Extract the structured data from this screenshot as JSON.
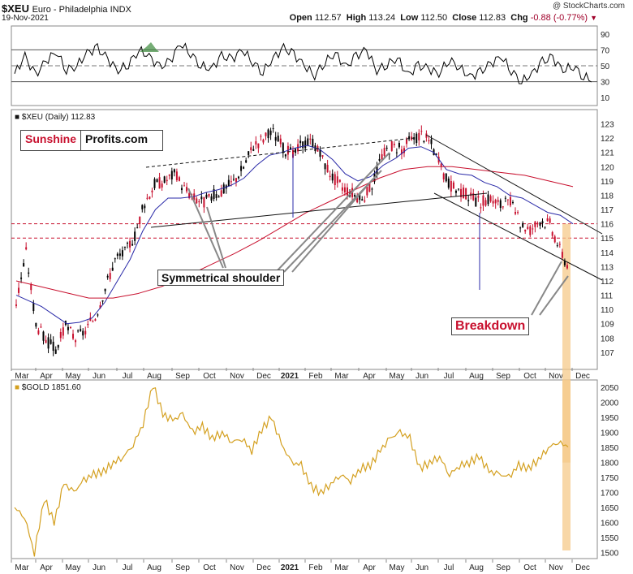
{
  "header": {
    "symbol": "$XEU",
    "description": "Euro - Philadelphia INDX",
    "date": "19-Nov-2021",
    "copyright": "@ StockCharts.com",
    "ohlc": {
      "open_label": "Open",
      "open": "112.57",
      "high_label": "High",
      "high": "113.24",
      "low_label": "Low",
      "low": "112.50",
      "close_label": "Close",
      "close": "112.83",
      "chg_label": "Chg",
      "chg": "-0.88 (-0.77%)",
      "chg_arrow": "▼"
    }
  },
  "logo": {
    "part1": "Sunshine",
    "part2": "Profits.com"
  },
  "annotations": {
    "shoulder": "Symmetrical shoulder",
    "breakdown": "Breakdown"
  },
  "colors": {
    "price_up": "#000000",
    "price_down": "#c8102e",
    "ma_short": "#2a2aa8",
    "ma_long": "#c8102e",
    "gold": "#d4a020",
    "highlight": "#f6c98a",
    "rsi": "#000000"
  },
  "chart_data": [
    {
      "type": "line",
      "name": "RSI panel",
      "yticks": [
        10,
        30,
        50,
        70,
        90
      ],
      "ylim": [
        0,
        100
      ],
      "reference_lines": [
        30,
        50,
        70
      ],
      "series": [
        {
          "values": [
            40,
            62,
            38,
            55,
            68,
            45,
            50,
            66,
            72,
            58,
            44,
            52,
            70,
            62,
            48,
            55,
            78,
            66,
            50,
            46,
            62,
            58,
            70,
            55,
            42,
            60,
            72,
            64,
            50,
            38,
            55,
            66,
            48,
            62,
            70,
            44,
            52,
            60,
            38,
            50,
            46,
            40,
            58,
            48,
            36,
            42,
            52,
            62,
            44,
            30,
            40,
            55,
            60,
            44,
            50,
            36,
            32
          ]
        }
      ]
    },
    {
      "type": "line",
      "name": "$XEU (Daily) 112.83",
      "y_axis_ticks": [
        107,
        108,
        109,
        110,
        111,
        112,
        113,
        114,
        115,
        116,
        117,
        118,
        119,
        120,
        121,
        122,
        123
      ],
      "ylim": [
        105.8,
        124.0
      ],
      "x_axis_labels": [
        "Mar",
        "Apr",
        "May",
        "Jun",
        "Jul",
        "Aug",
        "Sep",
        "Oct",
        "Nov",
        "Dec",
        "2021",
        "Feb",
        "Mar",
        "Apr",
        "May",
        "Jun",
        "Jul",
        "Aug",
        "Sep",
        "Oct",
        "Nov",
        "Dec"
      ],
      "reference_lines": [
        115.0,
        116.0
      ],
      "series": [
        {
          "values": [
            110.5,
            114.0,
            109.0,
            107.8,
            107.2,
            108.8,
            108.0,
            108.5,
            109.5,
            111.5,
            113.5,
            114.0,
            115.2,
            117.5,
            118.8,
            119.0,
            119.5,
            118.5,
            117.8,
            117.5,
            118.0,
            118.4,
            119.0,
            120.0,
            121.5,
            122.0,
            122.4,
            121.3,
            120.8,
            121.6,
            121.8,
            120.5,
            119.3,
            118.6,
            118.2,
            117.6,
            118.8,
            120.8,
            121.5,
            121.2,
            121.9,
            122.3,
            121.6,
            119.8,
            118.6,
            118.3,
            117.8,
            117.5,
            117.8,
            117.3,
            117.5,
            116.0,
            115.6,
            116.3,
            116.0,
            114.2,
            112.8
          ]
        },
        {
          "values": [
            111.0,
            110.6,
            110.2,
            109.6,
            109.0,
            109.1,
            109.4,
            110.5,
            112.0,
            113.5,
            115.5,
            117.0,
            117.8,
            117.8,
            117.9,
            118.2,
            118.4,
            118.7,
            119.2,
            120.1,
            120.8,
            121.0,
            121.3,
            121.5,
            121.2,
            120.5,
            119.5,
            119.0,
            119.3,
            120.1,
            120.6,
            121.3,
            121.4,
            121.0,
            119.8,
            119.5,
            119.4,
            118.9,
            118.6,
            118.0,
            117.8,
            117.3,
            116.8,
            116.6,
            116.0
          ]
        },
        {
          "values": [
            112.0,
            111.6,
            111.2,
            110.8,
            110.8,
            111.1,
            111.6,
            112.3,
            113.1,
            113.9,
            114.8,
            115.8,
            116.8,
            117.6,
            118.4,
            119.2,
            119.8,
            120.0,
            120.0,
            119.8,
            119.6,
            119.4,
            119.0,
            118.6
          ]
        }
      ]
    },
    {
      "type": "line",
      "name": "$GOLD 1851.60",
      "y_axis_ticks": [
        1500,
        1550,
        1600,
        1650,
        1700,
        1750,
        1800,
        1850,
        1900,
        1950,
        2000,
        2050
      ],
      "ylim": [
        1480,
        2075
      ],
      "x_axis_labels": [
        "Mar",
        "Apr",
        "May",
        "Jun",
        "Jul",
        "Aug",
        "Sep",
        "Oct",
        "Nov",
        "Dec",
        "2021",
        "Feb",
        "Mar",
        "Apr",
        "May",
        "Jun",
        "Jul",
        "Aug",
        "Sep",
        "Oct",
        "Nov",
        "Dec"
      ],
      "series": [
        {
          "values": [
            1650,
            1620,
            1500,
            1680,
            1600,
            1730,
            1700,
            1740,
            1760,
            1770,
            1800,
            1820,
            1860,
            1930,
            2060,
            1960,
            1940,
            1960,
            1900,
            1920,
            1880,
            1900,
            1870,
            1880,
            1840,
            1910,
            1950,
            1860,
            1800,
            1790,
            1720,
            1700,
            1730,
            1760,
            1740,
            1780,
            1790,
            1840,
            1880,
            1900,
            1880,
            1780,
            1800,
            1820,
            1760,
            1790,
            1800,
            1820,
            1770,
            1760,
            1750,
            1790,
            1780,
            1810,
            1850,
            1870,
            1851.6
          ]
        }
      ]
    }
  ]
}
